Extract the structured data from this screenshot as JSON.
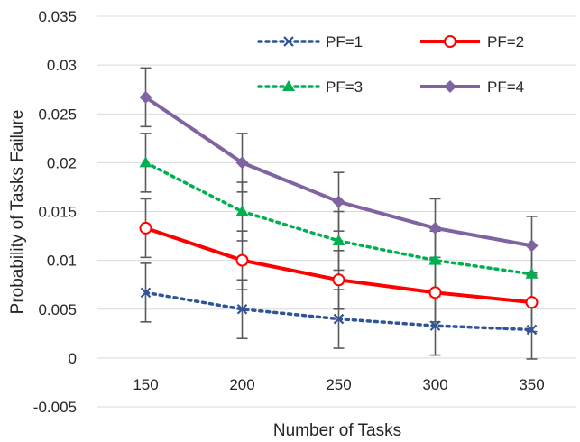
{
  "chart_data": {
    "type": "line",
    "title": "",
    "xlabel": "Number of Tasks",
    "ylabel": "Probability of Tasks Failure",
    "categories": [
      "150",
      "200",
      "250",
      "300",
      "350"
    ],
    "ylim": [
      -0.005,
      0.035
    ],
    "yticks": [
      "-0.005",
      "0",
      "0.005",
      "0.01",
      "0.015",
      "0.02",
      "0.025",
      "0.03",
      "0.035"
    ],
    "ytick_values": [
      -0.005,
      0,
      0.005,
      0.01,
      0.015,
      0.02,
      0.025,
      0.03,
      0.035
    ],
    "grid": "horizontal",
    "legend_position": "top-right",
    "error_bar": 0.003,
    "series": [
      {
        "name": "PF=1",
        "values": [
          0.0067,
          0.005,
          0.004,
          0.0033,
          0.0029
        ],
        "color": "#2f5597",
        "dash": "dotted",
        "marker": "x"
      },
      {
        "name": "PF=2",
        "values": [
          0.0133,
          0.01,
          0.008,
          0.0067,
          0.0057
        ],
        "color": "#ff0000",
        "dash": "solid",
        "marker": "circle"
      },
      {
        "name": "PF=3",
        "values": [
          0.02,
          0.015,
          0.012,
          0.01,
          0.0086
        ],
        "color": "#00b050",
        "dash": "dotted",
        "marker": "triangle"
      },
      {
        "name": "PF=4",
        "values": [
          0.0267,
          0.02,
          0.016,
          0.0133,
          0.0115
        ],
        "color": "#8064a2",
        "dash": "solid",
        "marker": "diamond"
      }
    ]
  }
}
